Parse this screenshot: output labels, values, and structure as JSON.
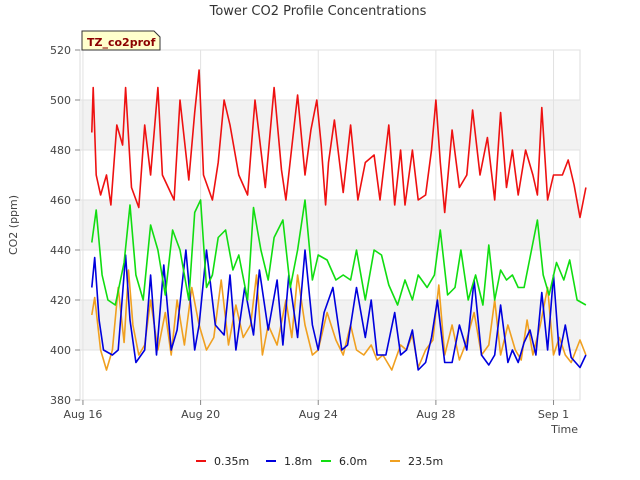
{
  "chart_data": {
    "type": "line",
    "title": "Tower CO2 Profile Concentrations",
    "site_label": "TZ_co2prof",
    "xlabel": "Time",
    "ylabel": "CO2 (ppm)",
    "ylim": [
      380,
      520
    ],
    "xlim": [
      -0.1,
      16.9
    ],
    "y_ticks": [
      380,
      400,
      420,
      440,
      460,
      480,
      500,
      520
    ],
    "x_ticks": [
      {
        "label": "Aug 16",
        "day": 0
      },
      {
        "label": "Aug 20",
        "day": 4
      },
      {
        "label": "Aug 24",
        "day": 8
      },
      {
        "label": "Aug 28",
        "day": 12
      },
      {
        "label": "Sep 1",
        "day": 16
      }
    ],
    "grid": true,
    "legend_position": "bottom",
    "x_unit": "days since Aug 16",
    "series": [
      {
        "name": "0.35m",
        "color": "#ee1111",
        "x": [
          0.3,
          0.35,
          0.45,
          0.6,
          0.8,
          0.95,
          1.15,
          1.35,
          1.45,
          1.65,
          1.9,
          2.1,
          2.3,
          2.55,
          2.7,
          3.1,
          3.3,
          3.6,
          3.8,
          3.95,
          4.1,
          4.4,
          4.6,
          4.8,
          5.0,
          5.3,
          5.6,
          5.85,
          6.2,
          6.5,
          6.75,
          6.9,
          7.3,
          7.55,
          7.75,
          7.95,
          8.1,
          8.25,
          8.35,
          8.55,
          8.85,
          9.1,
          9.35,
          9.6,
          9.9,
          10.1,
          10.4,
          10.6,
          10.8,
          10.95,
          11.2,
          11.4,
          11.65,
          11.85,
          12.0,
          12.15,
          12.3,
          12.55,
          12.8,
          13.05,
          13.25,
          13.5,
          13.75,
          14.0,
          14.2,
          14.4,
          14.6,
          14.8,
          15.05,
          15.3,
          15.45,
          15.6,
          15.8,
          16.0,
          16.3,
          16.5,
          16.7,
          16.9,
          17.1
        ],
        "values": [
          487,
          505,
          470,
          462,
          470,
          458,
          490,
          482,
          505,
          465,
          457,
          490,
          470,
          505,
          470,
          460,
          500,
          468,
          495,
          512,
          470,
          460,
          475,
          500,
          490,
          470,
          462,
          500,
          465,
          505,
          472,
          460,
          502,
          470,
          488,
          500,
          482,
          458,
          475,
          492,
          463,
          490,
          460,
          475,
          478,
          460,
          490,
          458,
          480,
          458,
          480,
          460,
          462,
          480,
          500,
          475,
          455,
          488,
          465,
          470,
          496,
          470,
          485,
          460,
          495,
          465,
          480,
          462,
          480,
          470,
          462,
          497,
          460,
          470,
          470,
          476,
          466,
          453,
          465
        ]
      },
      {
        "name": "1.8m",
        "color": "#0000dd",
        "x": [
          0.3,
          0.4,
          0.55,
          0.7,
          1.0,
          1.2,
          1.45,
          1.6,
          1.8,
          2.1,
          2.3,
          2.5,
          2.75,
          3.0,
          3.2,
          3.5,
          3.8,
          3.95,
          4.2,
          4.5,
          4.8,
          5.0,
          5.2,
          5.5,
          5.8,
          6.0,
          6.3,
          6.6,
          6.8,
          7.0,
          7.3,
          7.55,
          7.8,
          8.0,
          8.2,
          8.5,
          8.8,
          9.0,
          9.3,
          9.6,
          9.8,
          10.0,
          10.3,
          10.6,
          10.8,
          11.0,
          11.2,
          11.4,
          11.65,
          11.85,
          12.05,
          12.3,
          12.55,
          12.8,
          13.05,
          13.3,
          13.55,
          13.8,
          14.0,
          14.2,
          14.45,
          14.6,
          14.8,
          15.0,
          15.2,
          15.4,
          15.6,
          15.8,
          16.0,
          16.2,
          16.4,
          16.6,
          16.9,
          17.1
        ],
        "values": [
          425,
          437,
          412,
          400,
          398,
          400,
          438,
          412,
          395,
          400,
          430,
          398,
          434,
          400,
          408,
          440,
          400,
          410,
          440,
          410,
          406,
          430,
          400,
          425,
          406,
          432,
          408,
          428,
          402,
          430,
          405,
          440,
          410,
          400,
          415,
          425,
          400,
          402,
          425,
          405,
          420,
          398,
          398,
          415,
          398,
          400,
          408,
          392,
          395,
          405,
          420,
          395,
          395,
          410,
          400,
          428,
          398,
          394,
          398,
          418,
          395,
          400,
          395,
          403,
          408,
          398,
          423,
          400,
          430,
          398,
          410,
          397,
          393,
          398
        ]
      },
      {
        "name": "6.0m",
        "color": "#11dd11",
        "x": [
          0.3,
          0.45,
          0.65,
          0.85,
          1.1,
          1.4,
          1.6,
          1.8,
          2.05,
          2.3,
          2.55,
          2.8,
          3.05,
          3.3,
          3.6,
          3.8,
          4.0,
          4.2,
          4.4,
          4.6,
          4.85,
          5.1,
          5.3,
          5.6,
          5.8,
          6.05,
          6.3,
          6.5,
          6.8,
          7.05,
          7.3,
          7.55,
          7.8,
          8.0,
          8.3,
          8.6,
          8.85,
          9.1,
          9.3,
          9.6,
          9.9,
          10.15,
          10.4,
          10.7,
          10.95,
          11.2,
          11.4,
          11.7,
          11.95,
          12.15,
          12.4,
          12.65,
          12.85,
          13.1,
          13.35,
          13.6,
          13.8,
          14.0,
          14.2,
          14.4,
          14.6,
          14.8,
          15.0,
          15.25,
          15.45,
          15.65,
          15.85,
          16.1,
          16.35,
          16.55,
          16.8,
          17.1
        ],
        "values": [
          443,
          456,
          430,
          420,
          418,
          435,
          458,
          430,
          420,
          450,
          440,
          422,
          448,
          440,
          420,
          455,
          460,
          425,
          430,
          445,
          448,
          432,
          438,
          420,
          457,
          440,
          428,
          445,
          452,
          425,
          440,
          460,
          428,
          438,
          436,
          428,
          430,
          428,
          440,
          420,
          440,
          438,
          426,
          418,
          428,
          420,
          430,
          425,
          430,
          448,
          422,
          425,
          440,
          420,
          430,
          418,
          442,
          420,
          432,
          428,
          430,
          425,
          425,
          440,
          452,
          430,
          422,
          435,
          428,
          436,
          420,
          418
        ]
      },
      {
        "name": "23.5m",
        "color": "#f0a020",
        "x": [
          0.3,
          0.4,
          0.6,
          0.8,
          1.0,
          1.2,
          1.4,
          1.55,
          1.7,
          1.9,
          2.1,
          2.3,
          2.55,
          2.8,
          3.0,
          3.2,
          3.45,
          3.7,
          3.95,
          4.2,
          4.45,
          4.7,
          4.95,
          5.2,
          5.45,
          5.7,
          5.9,
          6.1,
          6.3,
          6.6,
          6.9,
          7.1,
          7.3,
          7.55,
          7.8,
          8.0,
          8.3,
          8.6,
          8.85,
          9.1,
          9.3,
          9.55,
          9.8,
          10.0,
          10.2,
          10.5,
          10.8,
          11.0,
          11.2,
          11.4,
          11.65,
          11.9,
          12.1,
          12.3,
          12.55,
          12.8,
          13.0,
          13.3,
          13.55,
          13.8,
          14.0,
          14.2,
          14.45,
          14.7,
          14.9,
          15.1,
          15.3,
          15.55,
          15.8,
          16.0,
          16.2,
          16.4,
          16.6,
          16.9,
          17.1
        ],
        "values": [
          414,
          421,
          400,
          392,
          400,
          425,
          403,
          432,
          410,
          398,
          402,
          420,
          400,
          415,
          398,
          420,
          402,
          425,
          410,
          400,
          405,
          428,
          402,
          418,
          405,
          410,
          430,
          398,
          410,
          402,
          420,
          405,
          430,
          410,
          398,
          400,
          415,
          404,
          398,
          410,
          400,
          398,
          402,
          396,
          398,
          392,
          402,
          400,
          406,
          393,
          400,
          404,
          426,
          398,
          410,
          396,
          402,
          415,
          398,
          402,
          420,
          398,
          410,
          400,
          396,
          412,
          398,
          410,
          425,
          398,
          405,
          398,
          395,
          404,
          398
        ]
      }
    ]
  }
}
